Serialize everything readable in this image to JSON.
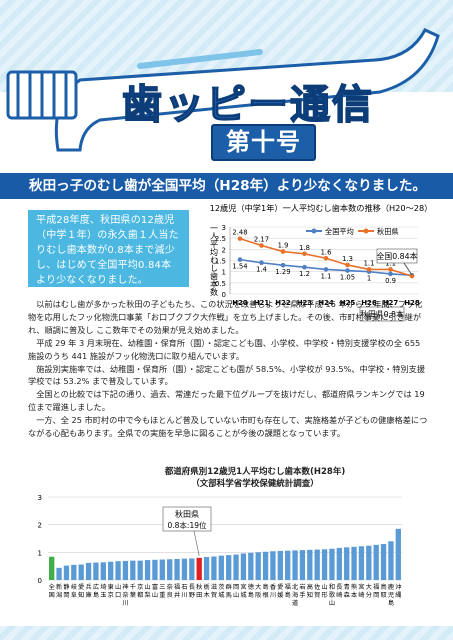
{
  "header": {
    "title": "歯ッピー通信",
    "issue": "第十号"
  },
  "headline": "秋田っ子のむし歯が全国平均（H28年）より少なくなりました。",
  "intro": "平成28年度、秋田県の12歳児（中学１年）の永久歯１人当たりむし歯本数が0.8本まで減少し、はじめて全国平均0.84本より少なくなりました。",
  "body_paragraphs": [
    "以前はむし歯が多かった秋田の子どもたち、この状況を改善しようと県は平成 16 年から 3 年間、フッ化物を応用したフッ化物洗口事業「お口ブクブク大作戦」を立ち上げました。その後、市町村事業に引き継がれ、順調に普及し ここ数年でその効果が見え始めました。",
    "平成 29 年 3 月末現在、幼稚園・保育所（園）・認定こども園、小学校、中学校・特別支援学校の全 655 施設のうち 441 施設がフッ化物洗口に取り組んでいます。",
    "施設別実施率では、幼稚園・保育所（園）・認定こども園が 58.5%、小学校が 93.5%、中学校・特別支援学校では 53.2% まで普及しています。",
    "全国との比較では下記の通り、過去、常連だった最下位グループを抜けだし、都道府県ランキングでは 19 位まで躍進しました。",
    "一方、全 25 市町村の中で今もほとんど普及していない市町も存在して、実施格差が子どもの健康格差につながる心配もあります。全県での実施を早急に図ることが今後の課題となっています。"
  ],
  "chart_data": [
    {
      "type": "line",
      "title": "12歳児（中学1年）一人平均むし歯本数の推移（H20～28）",
      "ylabel": "一人平均むし歯本数",
      "x": [
        "H20",
        "H21",
        "H22",
        "H23",
        "H24",
        "H25",
        "H26",
        "H27",
        "H28"
      ],
      "ylim": [
        0,
        3
      ],
      "yticks": [
        0,
        0.5,
        1,
        1.5,
        2,
        2.5,
        3
      ],
      "series": [
        {
          "name": "全国平均",
          "color": "#4f7fc4",
          "values": [
            1.54,
            1.4,
            1.29,
            1.2,
            1.1,
            1.05,
            1,
            0.9,
            0.84
          ]
        },
        {
          "name": "秋田県",
          "color": "#e8722a",
          "values": [
            2.48,
            2.17,
            1.9,
            1.8,
            1.6,
            1.3,
            1.1,
            1.1,
            0.8
          ]
        }
      ],
      "data_labels": {
        "全国平均": [
          "1.54",
          "1.4",
          "1.29",
          "1.2",
          "1.1",
          "1.05",
          "1",
          "0.9",
          ""
        ],
        "秋田県": [
          "2.48",
          "2.17",
          "1.9",
          "1.8",
          "1.6",
          "1.3",
          "1.1",
          "1.1",
          ""
        ]
      },
      "annotations": [
        "全国0.84本",
        "秋田県0.8本"
      ],
      "legend": "top-right",
      "grid": true
    },
    {
      "type": "bar",
      "title": "都道府県別12歳児1人平均むし歯本数(H28年)",
      "subtitle": "（文部科学省学校保健統計調査）",
      "ylim": [
        0,
        3
      ],
      "yticks": [
        0,
        1,
        2,
        3
      ],
      "categories": [
        "全国",
        "新潟",
        "静岡",
        "岐阜",
        "愛知",
        "兵庫",
        "広島",
        "埼玉",
        "東京",
        "山口",
        "神奈川",
        "千葉",
        "京都",
        "山梨",
        "富山",
        "三重",
        "奈良",
        "福井",
        "石川",
        "長野",
        "秋田",
        "栃木",
        "滋賀",
        "茨城",
        "群馬",
        "岡山",
        "宮城",
        "徳島",
        "大阪",
        "島根",
        "香川",
        "愛媛",
        "福島",
        "北海道",
        "岩手",
        "高知",
        "佐賀",
        "山形",
        "和歌山",
        "長崎",
        "青森",
        "熊本",
        "宮崎",
        "大分",
        "福岡",
        "鳥取",
        "鹿児島",
        "沖縄"
      ],
      "values": [
        0.84,
        0.44,
        0.52,
        0.55,
        0.56,
        0.62,
        0.63,
        0.64,
        0.66,
        0.68,
        0.69,
        0.7,
        0.7,
        0.72,
        0.73,
        0.74,
        0.75,
        0.76,
        0.77,
        0.78,
        0.8,
        0.83,
        0.85,
        0.88,
        0.9,
        0.92,
        0.96,
        0.98,
        1.0,
        1.02,
        1.04,
        1.05,
        1.06,
        1.07,
        1.08,
        1.09,
        1.1,
        1.11,
        1.13,
        1.16,
        1.18,
        1.2,
        1.22,
        1.24,
        1.27,
        1.3,
        1.4,
        1.85
      ],
      "highlight": "秋田",
      "annotation": {
        "line1": "秋田県",
        "line2": "0.8本:19位"
      },
      "colors": {
        "default": "#5b9bd5",
        "national": "#3fae49",
        "akita": "#e02020"
      },
      "grid": true
    }
  ]
}
